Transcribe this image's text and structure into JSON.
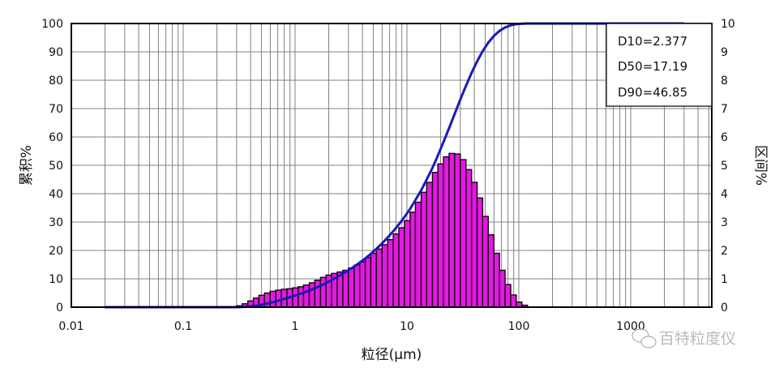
{
  "chart_data": {
    "type": "bar+line",
    "title": "",
    "xlabel": "粒径(μm)",
    "ylabel_left": "累积%",
    "ylabel_right": "区间%",
    "x_scale": "log",
    "xlim": [
      0.01,
      5000
    ],
    "ylim_left": [
      0,
      100
    ],
    "ylim_right": [
      0,
      10
    ],
    "grid": true,
    "x_tick_labels": [
      "0.01",
      "0.1",
      "1",
      "10",
      "100",
      "1000"
    ],
    "y_left_tick_labels": [
      "0",
      "10",
      "20",
      "30",
      "40",
      "50",
      "60",
      "70",
      "80",
      "90",
      "100"
    ],
    "y_right_tick_labels": [
      "0",
      "1",
      "2",
      "3",
      "4",
      "5",
      "6",
      "7",
      "8",
      "9",
      "10"
    ],
    "legend_placement": "top-right",
    "annotations": [
      "D10=2.377",
      "D50=17.19",
      "D90=46.85"
    ],
    "colors": {
      "histogram": "#e01ae0",
      "histogram_edge": "#1a0010",
      "cumulative": "#1a1ab8",
      "grid": "#808080"
    },
    "histogram": {
      "axis": "right",
      "bin_edges": [
        0.3,
        0.337,
        0.378,
        0.424,
        0.475,
        0.533,
        0.599,
        0.672,
        0.754,
        0.846,
        0.949,
        1.065,
        1.19,
        1.34,
        1.5,
        1.69,
        1.89,
        2.12,
        2.38,
        2.67,
        3.0,
        3.37,
        3.78,
        4.24,
        4.75,
        5.33,
        5.99,
        6.72,
        7.54,
        8.46,
        9.49,
        10.65,
        11.9,
        13.4,
        15.0,
        16.9,
        18.9,
        21.2,
        23.8,
        26.7,
        30.0,
        33.7,
        37.8,
        42.4,
        47.5,
        53.3,
        59.9,
        67.2,
        75.4,
        84.6,
        94.9,
        106.5,
        119.5
      ],
      "values": [
        0.05,
        0.12,
        0.22,
        0.32,
        0.42,
        0.5,
        0.56,
        0.6,
        0.63,
        0.65,
        0.68,
        0.72,
        0.78,
        0.86,
        0.95,
        1.05,
        1.13,
        1.19,
        1.24,
        1.3,
        1.38,
        1.48,
        1.6,
        1.75,
        1.9,
        2.05,
        2.2,
        2.38,
        2.58,
        2.8,
        3.05,
        3.35,
        3.7,
        4.05,
        4.4,
        4.75,
        5.05,
        5.3,
        5.42,
        5.4,
        5.2,
        4.85,
        4.4,
        3.85,
        3.2,
        2.55,
        1.9,
        1.3,
        0.8,
        0.43,
        0.18,
        0.07
      ]
    },
    "cumulative": {
      "axis": "left",
      "x": [
        0.02,
        0.3,
        0.337,
        0.378,
        0.424,
        0.475,
        0.533,
        0.599,
        0.672,
        0.754,
        0.846,
        0.949,
        1.065,
        1.19,
        1.34,
        1.5,
        1.69,
        1.89,
        2.12,
        2.38,
        2.67,
        3.0,
        3.37,
        3.78,
        4.24,
        4.75,
        5.33,
        5.99,
        6.72,
        7.54,
        8.46,
        9.49,
        10.65,
        11.9,
        13.4,
        15.0,
        16.9,
        18.9,
        21.2,
        23.8,
        26.7,
        30.0,
        33.7,
        37.8,
        42.4,
        47.5,
        53.3,
        59.9,
        67.2,
        75.4,
        84.6,
        94.9,
        106.5,
        119.5,
        3000
      ],
      "y": [
        0,
        0,
        0.05,
        0.16,
        0.36,
        0.66,
        1.05,
        1.52,
        2.04,
        2.6,
        3.19,
        3.79,
        4.43,
        5.1,
        5.82,
        6.63,
        7.51,
        8.49,
        9.54,
        10.65,
        11.81,
        13.02,
        14.31,
        15.68,
        17.18,
        18.81,
        20.58,
        22.49,
        24.54,
        26.76,
        29.16,
        31.77,
        34.61,
        37.74,
        41.18,
        44.96,
        49.06,
        53.49,
        58.19,
        63.13,
        68.18,
        73.21,
        78.06,
        82.58,
        86.68,
        90.27,
        93.25,
        95.63,
        97.4,
        98.61,
        99.36,
        99.76,
        99.93,
        100,
        100
      ]
    }
  },
  "watermark": {
    "text": "百特粒度仪",
    "icon": "wechat-icon"
  }
}
